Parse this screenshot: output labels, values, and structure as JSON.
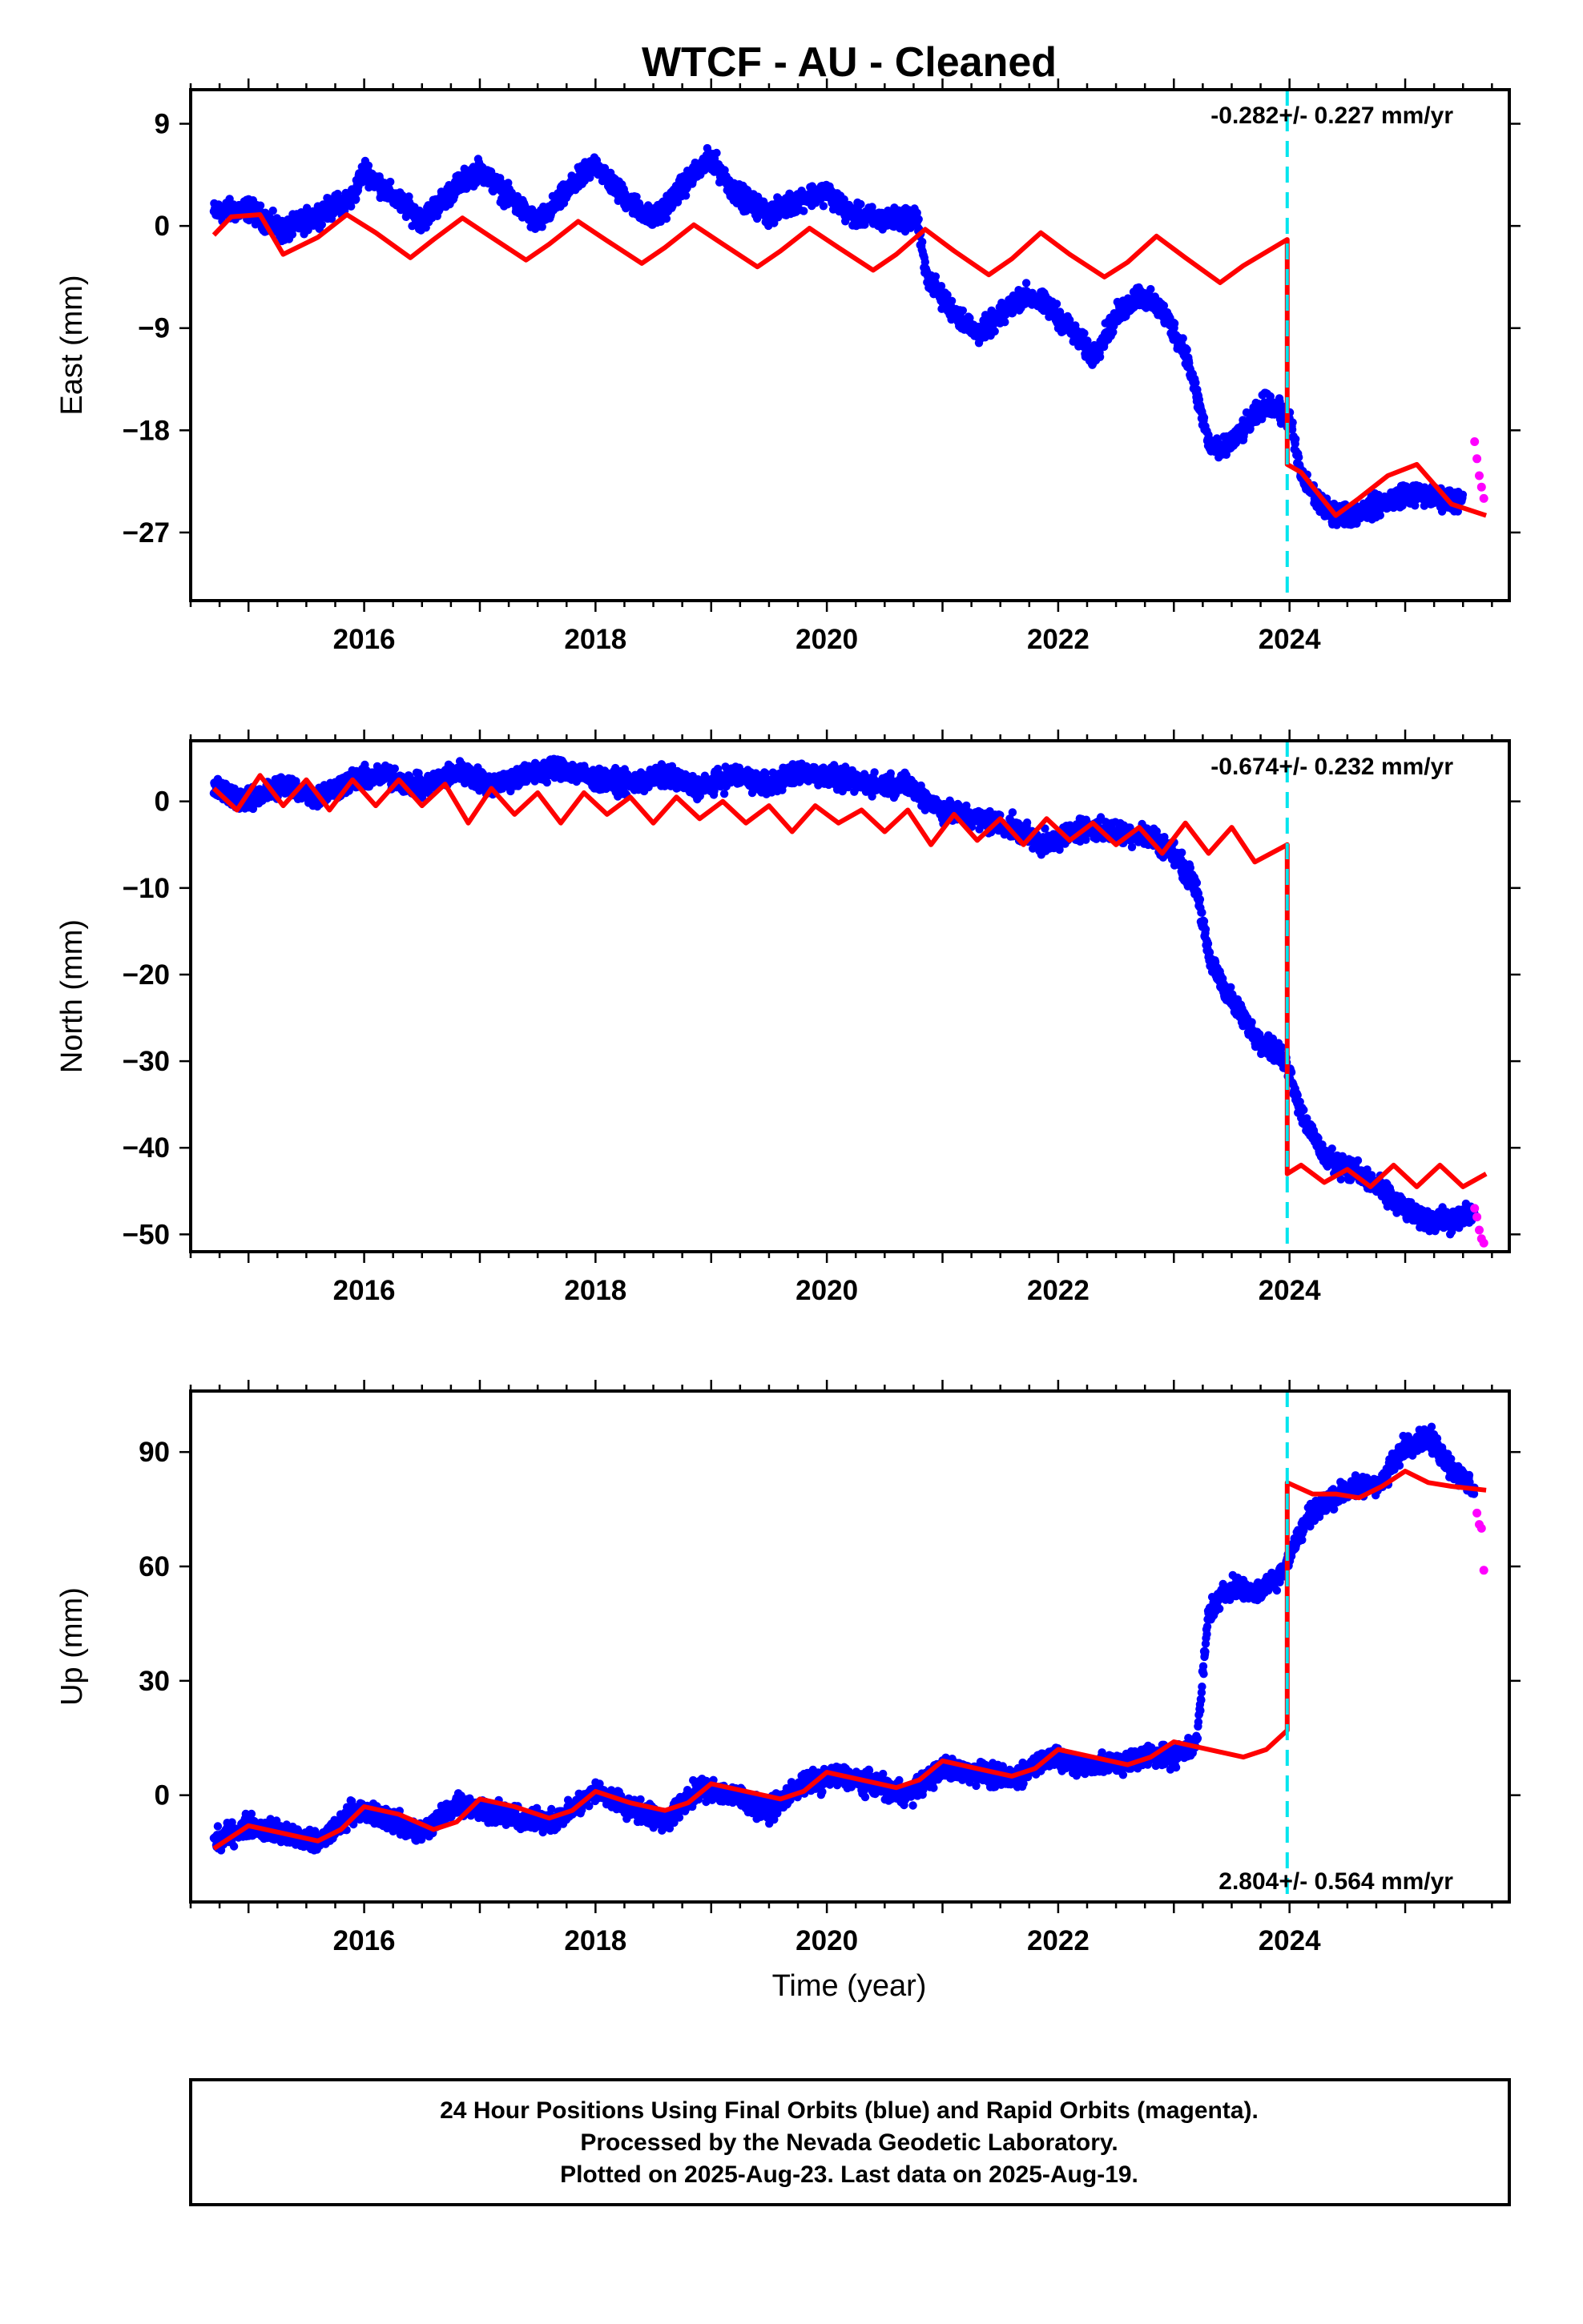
{
  "title": "WTCF  - AU - Cleaned",
  "xlabel": "Time (year)",
  "footer": {
    "line1": "24 Hour Positions Using Final Orbits (blue) and Rapid Orbits (magenta).",
    "line2": "Processed by the Nevada Geodetic Laboratory.",
    "line3": "Plotted on 2025-Aug-23. Last data on 2025-Aug-19."
  },
  "colors": {
    "final": "#0000ff",
    "rapid": "#ff00ff",
    "model": "#ff0000",
    "event": "#00e5ee"
  },
  "chart_data": [
    {
      "type": "scatter",
      "component": "east",
      "ylabel": "East (mm)",
      "xlim": [
        2014.5,
        2025.9
      ],
      "ylim": [
        -33,
        12
      ],
      "xticks": [
        2016,
        2018,
        2020,
        2022,
        2024
      ],
      "yticks": [
        9,
        0,
        -9,
        -18,
        -27
      ],
      "ytick_labels": [
        "9",
        "0",
        "−9",
        "−18",
        "−27"
      ],
      "rate_text": "-0.282+/- 0.227 mm/yr",
      "rate_position": "top-right",
      "event_line_x": 2023.98,
      "series_final": {
        "x": [
          2014.7,
          2015.0,
          2015.3,
          2015.6,
          2015.9,
          2016.0,
          2016.2,
          2016.5,
          2016.8,
          2017.0,
          2017.2,
          2017.5,
          2017.8,
          2018.0,
          2018.2,
          2018.5,
          2018.8,
          2019.0,
          2019.2,
          2019.5,
          2019.8,
          2020.0,
          2020.2,
          2020.5,
          2020.78,
          2020.85,
          2021.0,
          2021.3,
          2021.5,
          2021.7,
          2021.9,
          2022.1,
          2022.3,
          2022.5,
          2022.7,
          2022.9,
          2023.1,
          2023.3,
          2023.4,
          2023.6,
          2023.8,
          2024.0,
          2024.1,
          2024.3,
          2024.5,
          2024.8,
          2025.0,
          2025.3,
          2025.5
        ],
        "y": [
          1.2,
          1.5,
          -0.5,
          1.0,
          2.5,
          5.0,
          3.0,
          0.5,
          3.5,
          5.0,
          3.0,
          0.2,
          3.5,
          5.5,
          3.0,
          0.5,
          4.0,
          6.0,
          3.0,
          1.0,
          2.5,
          3.0,
          1.0,
          0.5,
          0.8,
          -4.0,
          -6.5,
          -9.5,
          -8.0,
          -6.0,
          -7.0,
          -9.0,
          -11.5,
          -8.0,
          -6.0,
          -7.5,
          -11.0,
          -19.0,
          -20.0,
          -18.0,
          -15.5,
          -17.0,
          -22.0,
          -25.0,
          -25.5,
          -24.5,
          -23.5,
          -24.0,
          -24.2
        ]
      },
      "series_rapid": {
        "x": [
          2025.6,
          2025.62,
          2025.64,
          2025.66,
          2025.68
        ],
        "y": [
          -19.0,
          -20.5,
          -22.0,
          -23.0,
          -24.0
        ]
      },
      "series_model": {
        "x": [
          2014.7,
          2014.85,
          2015.1,
          2015.3,
          2015.6,
          2015.85,
          2016.1,
          2016.4,
          2016.6,
          2016.85,
          2017.1,
          2017.4,
          2017.6,
          2017.85,
          2018.1,
          2018.4,
          2018.6,
          2018.85,
          2019.1,
          2019.4,
          2019.6,
          2019.85,
          2020.1,
          2020.4,
          2020.6,
          2020.85,
          2021.1,
          2021.4,
          2021.6,
          2021.85,
          2022.1,
          2022.4,
          2022.6,
          2022.85,
          2023.1,
          2023.4,
          2023.6,
          2023.98,
          2023.98,
          2024.1,
          2024.4,
          2024.6,
          2024.85,
          2025.1,
          2025.4,
          2025.7
        ],
        "y": [
          -0.8,
          0.8,
          1.0,
          -2.5,
          -1.0,
          1.0,
          -0.6,
          -2.8,
          -1.2,
          0.7,
          -1.0,
          -3.0,
          -1.6,
          0.4,
          -1.3,
          -3.3,
          -1.9,
          0.1,
          -1.6,
          -3.6,
          -2.2,
          -0.2,
          -1.9,
          -3.9,
          -2.5,
          -0.3,
          -2.2,
          -4.3,
          -2.9,
          -0.6,
          -2.5,
          -4.5,
          -3.2,
          -0.9,
          -2.8,
          -5.0,
          -3.5,
          -1.2,
          -21.0,
          -21.7,
          -25.5,
          -24.0,
          -22.0,
          -21.0,
          -24.5,
          -25.5
        ]
      }
    },
    {
      "type": "scatter",
      "component": "north",
      "ylabel": "North (mm)",
      "xlim": [
        2014.5,
        2025.9
      ],
      "ylim": [
        -52,
        7
      ],
      "xticks": [
        2016,
        2018,
        2020,
        2022,
        2024
      ],
      "yticks": [
        0,
        -10,
        -20,
        -30,
        -40,
        -50
      ],
      "ytick_labels": [
        "0",
        "−10",
        "−20",
        "−30",
        "−40",
        "−50"
      ],
      "rate_text": "-0.674+/- 0.232 mm/yr",
      "rate_position": "top-right",
      "event_line_x": 2023.98,
      "series_final": {
        "x": [
          2014.7,
          2015.0,
          2015.3,
          2015.6,
          2015.9,
          2016.2,
          2016.5,
          2016.8,
          2017.1,
          2017.4,
          2017.7,
          2018.0,
          2018.3,
          2018.6,
          2018.9,
          2019.2,
          2019.5,
          2019.8,
          2020.1,
          2020.4,
          2020.7,
          2021.0,
          2021.3,
          2021.6,
          2021.9,
          2022.2,
          2022.5,
          2022.8,
          2023.0,
          2023.2,
          2023.3,
          2023.5,
          2023.7,
          2023.9,
          2024.0,
          2024.1,
          2024.3,
          2024.6,
          2024.9,
          2025.1,
          2025.4,
          2025.6
        ],
        "y": [
          1.5,
          0.0,
          2.0,
          0.5,
          2.5,
          3.0,
          1.5,
          3.5,
          2.0,
          3.0,
          4.0,
          2.5,
          2.0,
          3.0,
          1.5,
          3.0,
          2.0,
          3.5,
          2.5,
          2.0,
          2.0,
          -1.0,
          -2.0,
          -3.0,
          -5.0,
          -3.0,
          -3.5,
          -4.0,
          -6.0,
          -10.0,
          -18.0,
          -23.0,
          -27.0,
          -29.0,
          -31.0,
          -36.0,
          -41.0,
          -43.0,
          -46.0,
          -48.0,
          -48.5,
          -47.5
        ]
      },
      "series_rapid": {
        "x": [
          2025.6,
          2025.62,
          2025.64,
          2025.66,
          2025.68
        ],
        "y": [
          -47.0,
          -48.0,
          -49.5,
          -50.5,
          -51.0
        ]
      },
      "series_model": {
        "x": [
          2014.7,
          2014.9,
          2015.1,
          2015.3,
          2015.5,
          2015.7,
          2015.9,
          2016.1,
          2016.3,
          2016.5,
          2016.7,
          2016.9,
          2017.1,
          2017.3,
          2017.5,
          2017.7,
          2017.9,
          2018.1,
          2018.3,
          2018.5,
          2018.7,
          2018.9,
          2019.1,
          2019.3,
          2019.5,
          2019.7,
          2019.9,
          2020.1,
          2020.3,
          2020.5,
          2020.7,
          2020.9,
          2021.1,
          2021.3,
          2021.5,
          2021.7,
          2021.9,
          2022.1,
          2022.3,
          2022.5,
          2022.7,
          2022.9,
          2023.1,
          2023.3,
          2023.5,
          2023.7,
          2023.98,
          2023.98,
          2024.1,
          2024.3,
          2024.5,
          2024.7,
          2024.9,
          2025.1,
          2025.3,
          2025.5,
          2025.7
        ],
        "y": [
          1.5,
          -1.0,
          3.0,
          -0.5,
          2.5,
          -1.0,
          2.5,
          -0.5,
          2.5,
          -0.5,
          2.0,
          -2.5,
          1.5,
          -1.5,
          1.0,
          -2.5,
          1.0,
          -1.5,
          0.5,
          -2.5,
          0.5,
          -2.0,
          0.0,
          -2.5,
          -0.5,
          -3.5,
          -0.5,
          -2.5,
          -1.0,
          -3.5,
          -1.0,
          -5.0,
          -1.5,
          -4.5,
          -2.0,
          -5.0,
          -2.0,
          -4.5,
          -2.5,
          -5.0,
          -3.0,
          -6.0,
          -2.5,
          -6.0,
          -3.0,
          -7.0,
          -5.0,
          -43.0,
          -42.0,
          -44.0,
          -42.5,
          -44.5,
          -42.0,
          -44.5,
          -42.0,
          -44.5,
          -43.0
        ]
      }
    },
    {
      "type": "scatter",
      "component": "up",
      "ylabel": "Up (mm)",
      "xlim": [
        2014.5,
        2025.9
      ],
      "ylim": [
        -28,
        106
      ],
      "xticks": [
        2016,
        2018,
        2020,
        2022,
        2024
      ],
      "yticks": [
        90,
        60,
        30,
        0
      ],
      "ytick_labels": [
        "90",
        "60",
        "30",
        "0"
      ],
      "rate_text": "2.804+/- 0.564 mm/yr",
      "rate_position": "bottom-right",
      "event_line_x": 2023.98,
      "series_final": {
        "x": [
          2014.7,
          2015.0,
          2015.3,
          2015.6,
          2015.9,
          2016.2,
          2016.5,
          2016.8,
          2017.1,
          2017.4,
          2017.7,
          2018.0,
          2018.3,
          2018.6,
          2018.9,
          2019.2,
          2019.5,
          2019.8,
          2020.1,
          2020.4,
          2020.7,
          2021.0,
          2021.3,
          2021.6,
          2021.9,
          2022.2,
          2022.5,
          2022.8,
          2023.0,
          2023.2,
          2023.3,
          2023.5,
          2023.7,
          2023.9,
          2024.0,
          2024.2,
          2024.5,
          2024.8,
          2025.0,
          2025.2,
          2025.4,
          2025.6
        ],
        "y": [
          -12,
          -8,
          -10,
          -13,
          -4,
          -6,
          -10,
          -2,
          -4,
          -7,
          -6,
          1,
          -3,
          -7,
          2,
          0,
          -4,
          3,
          5,
          3,
          0,
          7,
          6,
          4,
          10,
          8,
          8,
          11,
          10,
          14,
          48,
          55,
          53,
          57,
          63,
          75,
          80,
          82,
          92,
          94,
          86,
          80
        ]
      },
      "series_rapid": {
        "x": [
          2025.62,
          2025.64,
          2025.66,
          2025.68
        ],
        "y": [
          74,
          71,
          70,
          59
        ]
      },
      "series_model": {
        "x": [
          2014.7,
          2015.0,
          2015.3,
          2015.6,
          2015.8,
          2016.0,
          2016.3,
          2016.6,
          2016.8,
          2017.0,
          2017.3,
          2017.6,
          2017.8,
          2018.0,
          2018.3,
          2018.6,
          2018.8,
          2019.0,
          2019.3,
          2019.6,
          2019.8,
          2020.0,
          2020.3,
          2020.6,
          2020.8,
          2021.0,
          2021.3,
          2021.6,
          2021.8,
          2022.0,
          2022.3,
          2022.6,
          2022.8,
          2023.0,
          2023.3,
          2023.6,
          2023.8,
          2023.98,
          2023.98,
          2024.2,
          2024.4,
          2024.6,
          2024.8,
          2025.0,
          2025.2,
          2025.4,
          2025.7
        ],
        "y": [
          -14,
          -8,
          -10,
          -12,
          -9,
          -3,
          -5,
          -9,
          -7,
          -1,
          -3,
          -6,
          -4,
          1,
          -2,
          -4,
          -2,
          3,
          1,
          -1,
          1,
          6,
          4,
          2,
          4,
          9,
          7,
          5,
          7,
          12,
          10,
          8,
          10,
          14,
          12,
          10,
          12,
          17,
          82,
          79,
          79,
          78,
          81,
          85,
          82,
          81,
          80
        ]
      }
    }
  ]
}
